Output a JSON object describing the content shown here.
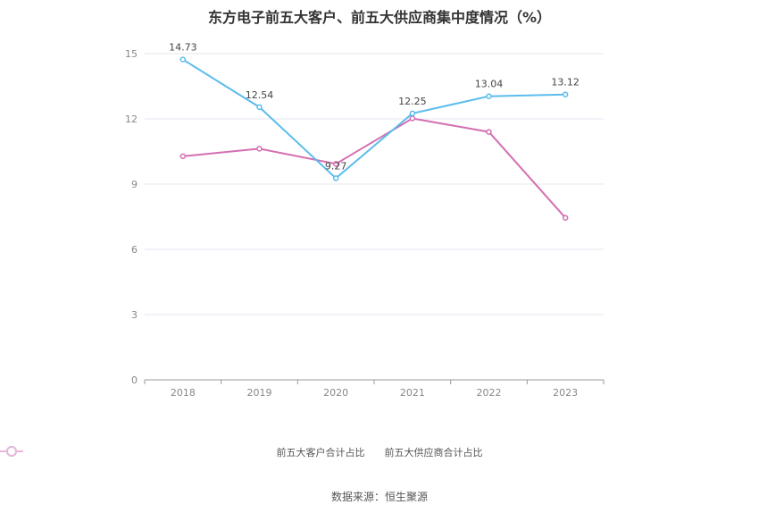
{
  "title": "东方电子前五大客户、前五大供应商集中度情况（%）",
  "source": "数据来源：恒生聚源",
  "chart_data": {
    "type": "line",
    "title": "东方电子前五大客户、前五大供应商集中度情况（%）",
    "categories": [
      "2018",
      "2019",
      "2020",
      "2021",
      "2022",
      "2023"
    ],
    "ylim": [
      0,
      15
    ],
    "yticks": [
      0,
      3,
      6,
      9,
      12,
      15
    ],
    "grid": true,
    "legend_position": "bottom",
    "series": [
      {
        "name": "前五大客户合计占比",
        "color": "#5bbcec",
        "values": [
          14.73,
          12.54,
          9.27,
          12.25,
          13.04,
          13.12
        ],
        "labels": [
          "14.73",
          "12.54",
          "9.27",
          "12.25",
          "13.04",
          "13.12"
        ]
      },
      {
        "name": "前五大供应商合计占比",
        "color": "#d46fb1",
        "values": [
          10.28,
          10.63,
          9.93,
          12.02,
          11.4,
          7.45
        ]
      }
    ]
  }
}
